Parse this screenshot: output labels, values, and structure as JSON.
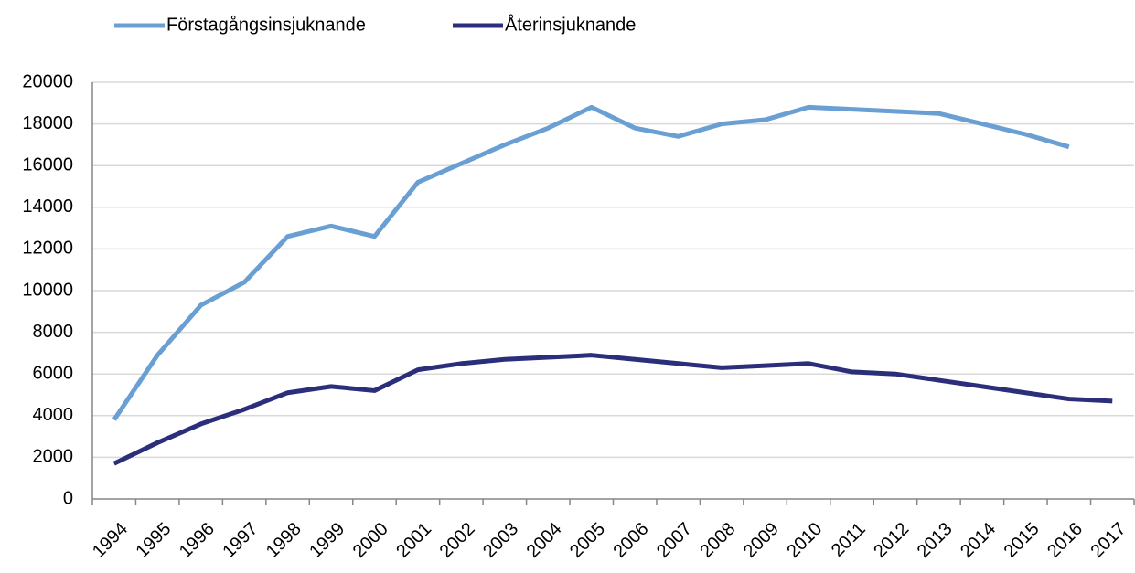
{
  "chart_data": {
    "type": "line",
    "categories": [
      "1994",
      "1995",
      "1996",
      "1997",
      "1998",
      "1999",
      "2000",
      "2001",
      "2002",
      "2003",
      "2004",
      "2005",
      "2006",
      "2007",
      "2008",
      "2009",
      "2010",
      "2011",
      "2012",
      "2013",
      "2014",
      "2015",
      "2016",
      "2017"
    ],
    "series": [
      {
        "name": "Förstagångsinsjuknande",
        "color": "#6a9fd4",
        "values": [
          3800,
          6900,
          9300,
          10400,
          12600,
          13100,
          12600,
          15200,
          16100,
          17000,
          17800,
          18800,
          17800,
          17400,
          18000,
          18200,
          18800,
          18700,
          18600,
          18500,
          18000,
          17500,
          16900,
          null
        ]
      },
      {
        "name": "Återinsjuknande",
        "color": "#2b2e7a",
        "values": [
          1700,
          2700,
          3600,
          4300,
          5100,
          5400,
          5200,
          6200,
          6500,
          6700,
          6800,
          6900,
          6700,
          6500,
          6300,
          6400,
          6500,
          6100,
          6000,
          5700,
          5400,
          5100,
          4800,
          4700
        ]
      }
    ],
    "ylim": [
      0,
      20000
    ],
    "yticks": [
      0,
      2000,
      4000,
      6000,
      8000,
      10000,
      12000,
      14000,
      16000,
      18000,
      20000
    ],
    "grid": true,
    "legend": "top"
  }
}
